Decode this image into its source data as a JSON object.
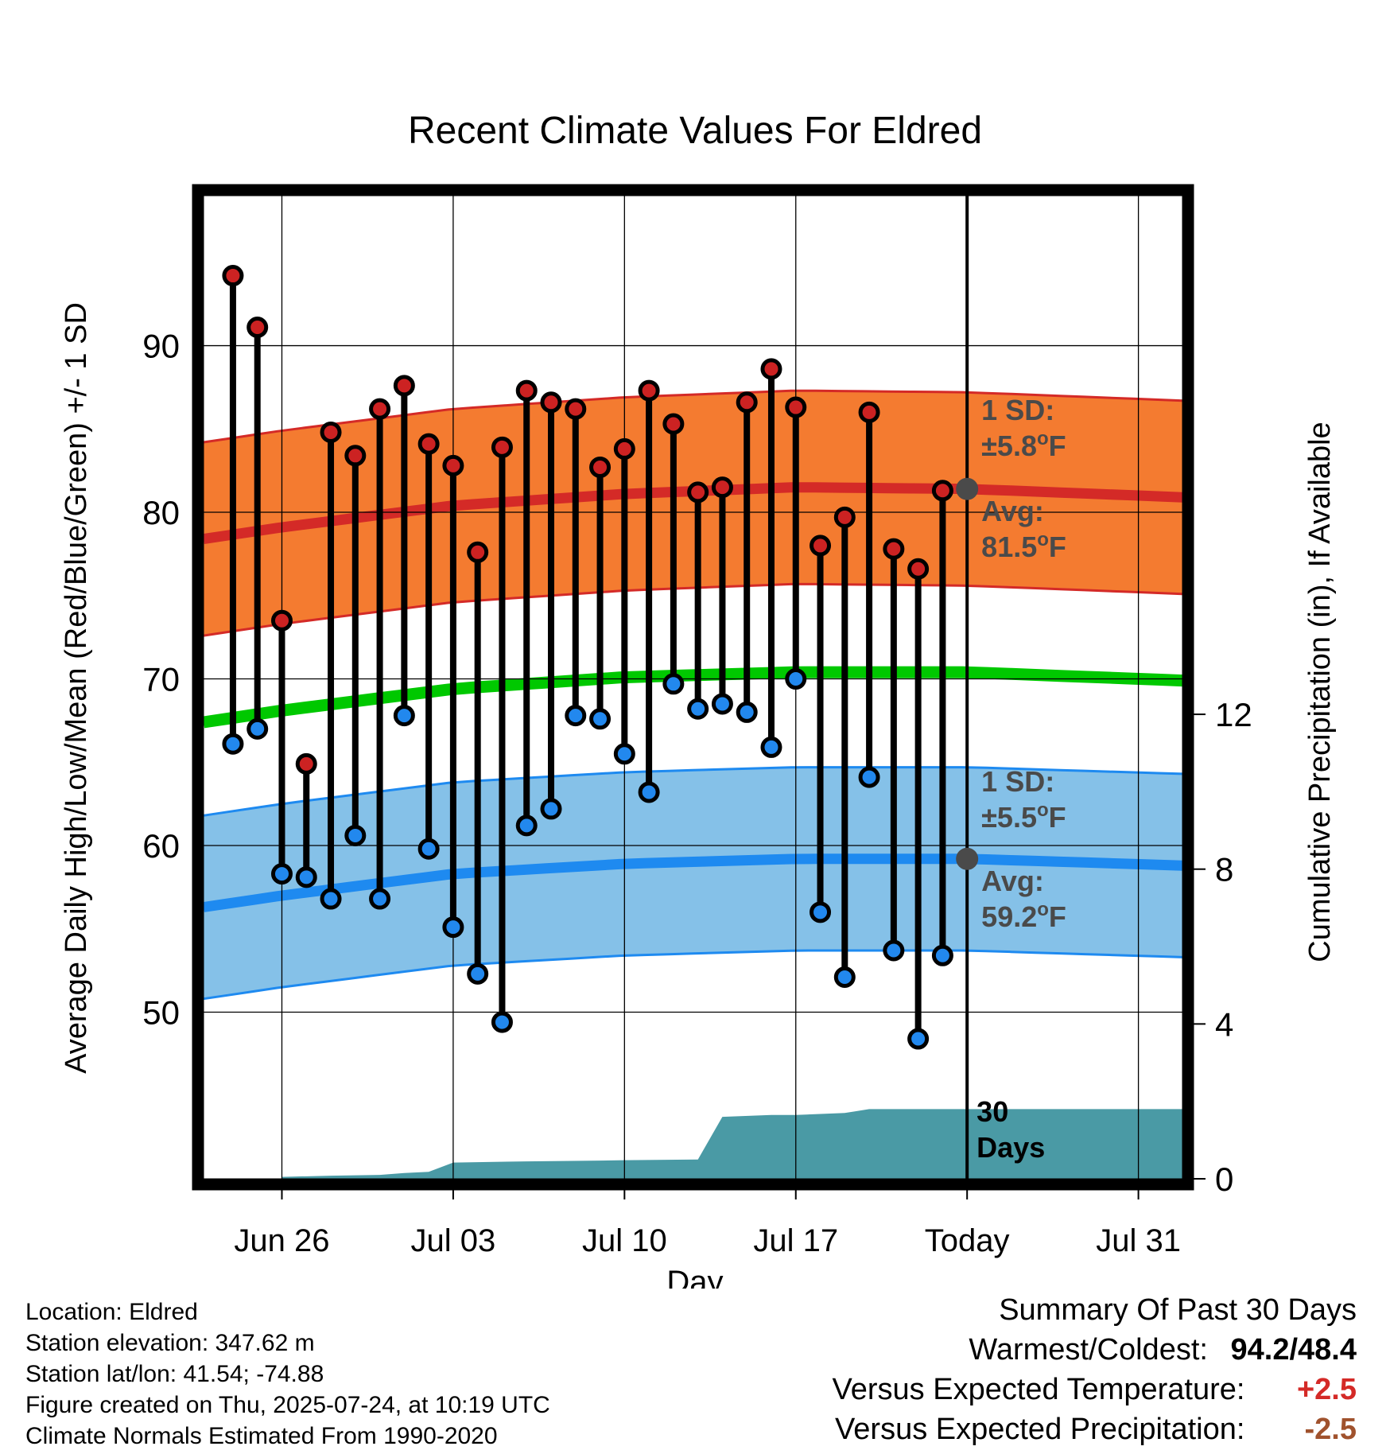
{
  "title": "Recent Climate Values For Eldred",
  "colors": {
    "high_fill": "#f47b30",
    "high_avg_line": "#d42a27",
    "high_edge": "#d42a27",
    "low_fill": "#85c1e8",
    "low_avg_line": "#1e8af0",
    "low_edge": "#1e8af0",
    "mean_line": "#00c800",
    "precip_fill": "#4a9aa5",
    "high_marker": "#cc2222",
    "low_marker": "#2288ee",
    "avg_dot": "#4a4a4a",
    "annot_text": "#4a4a4a",
    "temp_anomaly": "#d42a27",
    "precip_anomaly": "#a0522d"
  },
  "chart_data": {
    "type": "line",
    "title": "Recent Climate Values For Eldred",
    "xlabel": "Day",
    "ylabel": "Average Daily High/Low/Mean (Red/Blue/Green) +/- 1 SD",
    "y2label": "Cumulative Precipitation (in), If Available",
    "ylim": [
      40,
      99
    ],
    "y2lim": [
      0,
      25.4
    ],
    "grid": true,
    "x_ticks": [
      {
        "day": 26,
        "label": "Jun 26"
      },
      {
        "day": 33,
        "label": "Jul 03"
      },
      {
        "day": 40,
        "label": "Jul 10"
      },
      {
        "day": 47,
        "label": "Jul 17"
      },
      {
        "day": 54,
        "label": "Today"
      },
      {
        "day": 61,
        "label": "Jul 31"
      }
    ],
    "xlim": [
      22.8,
      62.8
    ],
    "y_ticks": [
      50,
      60,
      70,
      80,
      90
    ],
    "y2_ticks": [
      0,
      4,
      8,
      12
    ],
    "today_day": 54,
    "normals": {
      "days": [
        22.8,
        26,
        33,
        40,
        47,
        54,
        62.8
      ],
      "high_avg": [
        78.4,
        79.1,
        80.4,
        81.1,
        81.5,
        81.4,
        80.9
      ],
      "high_sd": 5.8,
      "low_avg": [
        56.3,
        57.0,
        58.3,
        58.9,
        59.2,
        59.2,
        58.8
      ],
      "low_sd": 5.5,
      "mean_avg": [
        67.4,
        68.1,
        69.4,
        70.1,
        70.4,
        70.4,
        69.9
      ]
    },
    "series": [
      {
        "name": "High",
        "x": [
          24,
          25,
          26,
          27,
          28,
          29,
          30,
          31,
          32,
          33,
          34,
          35,
          36,
          37,
          38,
          39,
          40,
          41,
          42,
          43,
          44,
          45,
          46,
          47,
          48,
          49,
          50,
          51,
          52,
          53
        ],
        "values": [
          94.2,
          91.1,
          73.5,
          64.9,
          84.8,
          83.4,
          86.2,
          87.6,
          84.1,
          82.8,
          77.6,
          83.9,
          87.3,
          86.6,
          86.2,
          82.7,
          83.8,
          87.3,
          85.3,
          81.2,
          81.5,
          86.6,
          88.6,
          86.3,
          78.0,
          79.7,
          86.0,
          77.8,
          76.6,
          81.3
        ]
      },
      {
        "name": "Low",
        "x": [
          24,
          25,
          26,
          27,
          28,
          29,
          30,
          31,
          32,
          33,
          34,
          35,
          36,
          37,
          38,
          39,
          40,
          41,
          42,
          43,
          44,
          45,
          46,
          47,
          48,
          49,
          50,
          51,
          52,
          53
        ],
        "values": [
          66.1,
          67.0,
          58.3,
          58.1,
          56.8,
          60.6,
          56.8,
          67.8,
          59.8,
          55.1,
          52.3,
          49.4,
          61.2,
          62.2,
          67.8,
          67.6,
          65.5,
          63.2,
          69.7,
          68.2,
          68.5,
          68.0,
          65.9,
          70.0,
          56.0,
          52.1,
          64.1,
          53.7,
          48.4,
          53.4
        ]
      },
      {
        "name": "Cumulative Precipitation",
        "axis": "y2",
        "x": [
          26,
          28,
          30,
          31,
          32,
          33,
          36,
          39,
          40,
          43,
          44,
          46,
          47,
          49,
          50,
          54,
          62.8
        ],
        "values": [
          0.05,
          0.08,
          0.1,
          0.15,
          0.18,
          0.42,
          0.45,
          0.47,
          0.48,
          0.5,
          1.6,
          1.65,
          1.65,
          1.7,
          1.8,
          1.8,
          1.8
        ]
      }
    ],
    "annotations": {
      "high_sd_label": "1 SD:",
      "high_sd_value": "±5.8",
      "high_avg_label": "Avg:",
      "high_avg_value": "81.5",
      "low_sd_label": "1 SD:",
      "low_sd_value": "±5.5",
      "low_avg_label": "Avg:",
      "low_avg_value": "59.2",
      "deg_mark": "o",
      "unit_suffix": "F",
      "days_label_1": "30",
      "days_label_2": "Days"
    }
  },
  "info": {
    "location": "Location: Eldred",
    "elevation": "Station elevation: 347.62 m",
    "latlon": "Station lat/lon: 41.54; -74.88",
    "created": "Figure created on Thu, 2025-07-24, at 10:19 UTC",
    "normals": "Climate Normals Estimated From 1990-2020"
  },
  "summary": {
    "heading": "Summary Of Past 30 Days",
    "warm_cold_label": "Warmest/Coldest:",
    "warm_cold_value": "94.2/48.4",
    "temp_label": "Versus Expected Temperature:",
    "temp_value": "+2.5",
    "precip_label": "Versus Expected Precipitation:",
    "precip_value": "-2.5"
  }
}
